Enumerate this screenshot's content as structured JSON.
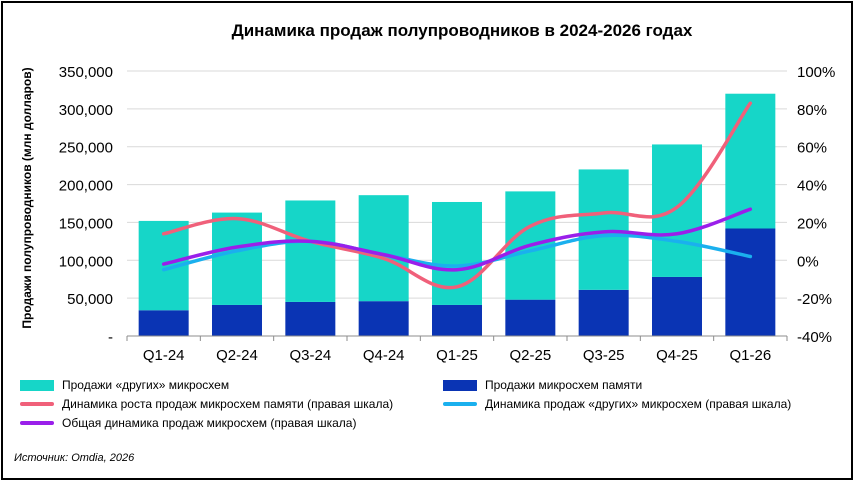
{
  "chart_data": {
    "type": "bar",
    "title": "Динамика продаж полупроводников в 2024-2026 годах",
    "ylabel": "Продажи полупроводников (млн долларов)",
    "categories": [
      "Q1-24",
      "Q2-24",
      "Q3-24",
      "Q4-24",
      "Q1-25",
      "Q2-25",
      "Q3-25",
      "Q4-25",
      "Q1-26"
    ],
    "ylim": [
      0,
      350000
    ],
    "y_ticks": [
      "-",
      "50,000",
      "100,000",
      "150,000",
      "200,000",
      "250,000",
      "300,000",
      "350,000"
    ],
    "y2lim": [
      -40,
      100
    ],
    "y2_ticks": [
      "-40%",
      "-20%",
      "0%",
      "20%",
      "40%",
      "60%",
      "80%",
      "100%"
    ],
    "stacked": true,
    "bars": [
      {
        "name": "Продажи микросхем памяти",
        "color": "#0a34b4",
        "values": [
          34000,
          41000,
          45000,
          46000,
          41000,
          48000,
          61000,
          78000,
          142000
        ]
      },
      {
        "name": "Продажи «других» микросхем",
        "color": "#16d6c8",
        "values": [
          118000,
          122000,
          134000,
          140000,
          136000,
          143000,
          159000,
          175000,
          178000
        ]
      }
    ],
    "lines": [
      {
        "name": "Динамика роста продаж микросхем памяти (правая шкала)",
        "color": "#f0607a",
        "axis": "right",
        "values": [
          14,
          22,
          10,
          1,
          -14,
          18,
          25,
          28,
          83
        ]
      },
      {
        "name": "Динамика продаж «других» микросхем (правая шкала)",
        "color": "#1ab0ee",
        "axis": "right",
        "values": [
          -5,
          5,
          10,
          3,
          -3,
          5,
          13,
          10,
          2
        ]
      },
      {
        "name": "Общая динамика продаж микросхем (правая шкала)",
        "color": "#9a1fea",
        "axis": "right",
        "values": [
          -2,
          7,
          10,
          3,
          -5,
          8,
          15,
          14,
          27
        ]
      }
    ],
    "legend_position": "bottom",
    "grid": true
  },
  "legend": [
    {
      "key": "other",
      "label": "Продажи «другиx» микросхем",
      "color": "#16d6c8",
      "kind": "box"
    },
    {
      "key": "memory",
      "label": "Продажи микросхем памяти",
      "color": "#0a34b4",
      "kind": "box"
    },
    {
      "key": "memory-growth",
      "label": "Динамика роста продаж микросхем памяти (правая шкала)",
      "color": "#f0607a",
      "kind": "line"
    },
    {
      "key": "other-growth",
      "label": "Динамика продаж «других» микросхем (правая шкала)",
      "color": "#1ab0ee",
      "kind": "line"
    },
    {
      "key": "total-growth",
      "label": "Общая динамика продаж микросхем (правая шкала)",
      "color": "#9a1fea",
      "kind": "line"
    }
  ],
  "source": "Источник: Omdia, 2026"
}
